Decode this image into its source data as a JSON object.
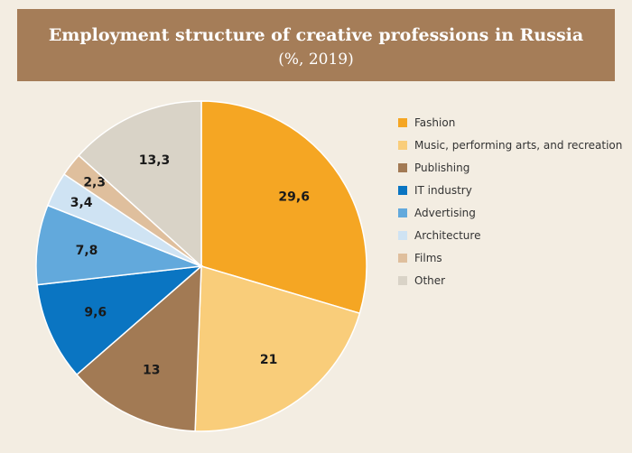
{
  "header": {
    "title": "Employment structure of creative professions in Russia",
    "subtitle": "(%, 2019)"
  },
  "chart_data": {
    "type": "pie",
    "title": "Employment structure of creative professions in Russia",
    "subtitle": "(%, 2019)",
    "legend_position": "right",
    "categories": [
      "Fashion",
      "Music, performing arts, and recreation",
      "Publishing",
      "IT industry",
      "Advertising",
      "Architecture",
      "Films",
      "Other"
    ],
    "values": [
      29.6,
      21,
      13,
      9.6,
      7.8,
      3.4,
      2.3,
      13.3
    ],
    "labels": [
      "29,6",
      "21",
      "13",
      "9,6",
      "7,8",
      "3,4",
      "2,3",
      "13,3"
    ],
    "colors": [
      "#f5a623",
      "#f9cd7a",
      "#a27a54",
      "#0a75c2",
      "#62a9dc",
      "#cfe3f3",
      "#dfbf9d",
      "#d9d3c7"
    ]
  }
}
